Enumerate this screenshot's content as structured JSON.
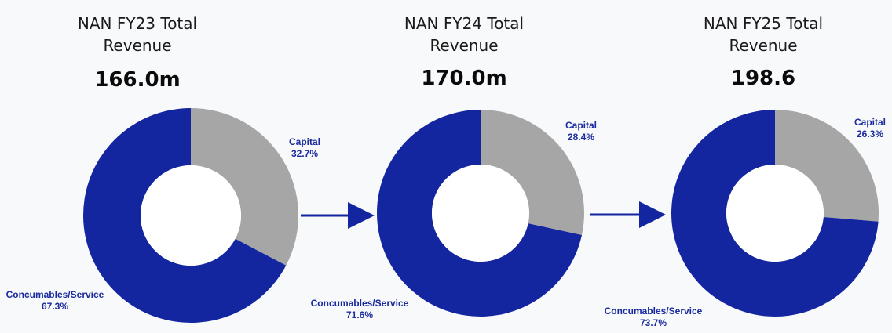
{
  "colors": {
    "capital": "#a6a6a6",
    "consumables": "#1425a0",
    "label": "#1a2b9e",
    "arrow": "#1425a0",
    "hole": "#ffffff"
  },
  "panels": [
    {
      "title_line1": "NAN FY23 Total",
      "title_line2": "Revenue",
      "total": "166.0m"
    },
    {
      "title_line1": "NAN FY24 Total",
      "title_line2": "Revenue",
      "total": "170.0m"
    },
    {
      "title_line1": "NAN FY25 Total",
      "title_line2": "Revenue",
      "total": "198.6"
    }
  ],
  "chart_data": [
    {
      "type": "pie",
      "title": "NAN FY23 Total Revenue",
      "total": "166.0m",
      "categories": [
        "Capital",
        "Concumables/Service"
      ],
      "values": [
        32.7,
        67.3
      ],
      "labels": [
        "32.7%",
        "67.3%"
      ]
    },
    {
      "type": "pie",
      "title": "NAN FY24 Total Revenue",
      "total": "170.0m",
      "categories": [
        "Capital",
        "Concumables/Service"
      ],
      "values": [
        28.4,
        71.6
      ],
      "labels": [
        "28.4%",
        "71.6%"
      ]
    },
    {
      "type": "pie",
      "title": "NAN FY25 Total Revenue",
      "total": "198.6",
      "categories": [
        "Capital",
        "Concumables/Service"
      ],
      "values": [
        26.3,
        73.7
      ],
      "labels": [
        "26.3%",
        "73.7%"
      ]
    }
  ]
}
